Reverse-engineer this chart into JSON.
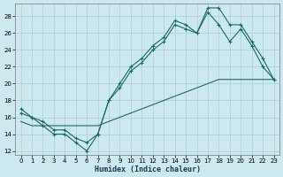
{
  "title": "",
  "xlabel": "Humidex (Indice chaleur)",
  "bg_color": "#cce9f0",
  "grid_color": "#aacdd8",
  "line_color": "#1a6b60",
  "xlim": [
    -0.5,
    23.5
  ],
  "ylim": [
    11.5,
    29.5
  ],
  "xticks": [
    0,
    1,
    2,
    3,
    4,
    5,
    6,
    7,
    8,
    9,
    10,
    11,
    12,
    13,
    14,
    15,
    16,
    17,
    18,
    19,
    20,
    21,
    22,
    23
  ],
  "yticks": [
    12,
    14,
    16,
    18,
    20,
    22,
    24,
    26,
    28
  ],
  "line1_x": [
    0,
    1,
    2,
    3,
    4,
    5,
    6,
    7,
    8,
    9,
    10,
    11,
    12,
    13,
    14,
    15,
    16,
    17,
    18,
    19,
    20,
    21,
    22,
    23
  ],
  "line1_y": [
    17,
    16,
    15,
    14,
    14,
    13,
    12,
    14,
    18,
    20,
    22,
    23,
    24.5,
    25.5,
    27.5,
    27,
    26,
    29,
    29,
    27,
    27,
    25,
    23,
    20.5
  ],
  "line2_x": [
    0,
    1,
    2,
    3,
    4,
    5,
    6,
    7,
    8,
    9,
    10,
    11,
    12,
    13,
    14,
    15,
    16,
    17,
    18,
    19,
    20,
    21,
    22,
    23
  ],
  "line2_y": [
    16.5,
    16,
    15.5,
    14.5,
    14.5,
    13.5,
    13,
    14,
    18,
    19.5,
    21.5,
    22.5,
    24,
    25,
    27,
    26.5,
    26,
    28.5,
    27,
    25,
    26.5,
    24.5,
    22,
    20.5
  ],
  "line3_x": [
    0,
    1,
    2,
    3,
    4,
    5,
    6,
    7,
    8,
    9,
    10,
    11,
    12,
    13,
    14,
    15,
    16,
    17,
    18,
    19,
    20,
    21,
    22,
    23
  ],
  "line3_y": [
    15.5,
    15,
    15,
    15,
    15,
    15,
    15,
    15,
    15.5,
    16,
    16.5,
    17,
    17.5,
    18,
    18.5,
    19,
    19.5,
    20,
    20.5,
    20.5,
    20.5,
    20.5,
    20.5,
    20.5
  ]
}
